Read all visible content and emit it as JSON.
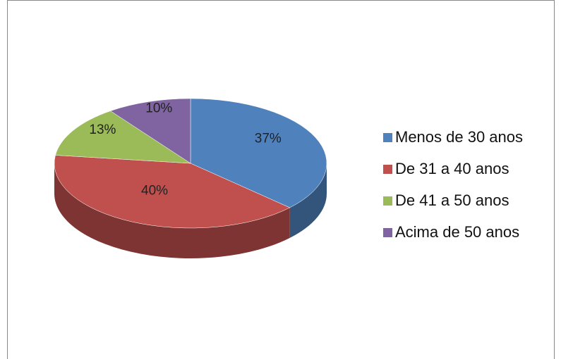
{
  "chart_data": {
    "type": "pie3d",
    "categories": [
      "Menos de 30 anos",
      "De 31 a 40 anos",
      "De 41 a 50 anos",
      "Acima de 50 anos"
    ],
    "values": [
      37,
      40,
      13,
      10
    ],
    "value_labels": [
      "37%",
      "40%",
      "13%",
      "10%"
    ],
    "colors": [
      "#4f81bd",
      "#c0504d",
      "#9bbb59",
      "#8064a2"
    ],
    "legend": "right"
  }
}
